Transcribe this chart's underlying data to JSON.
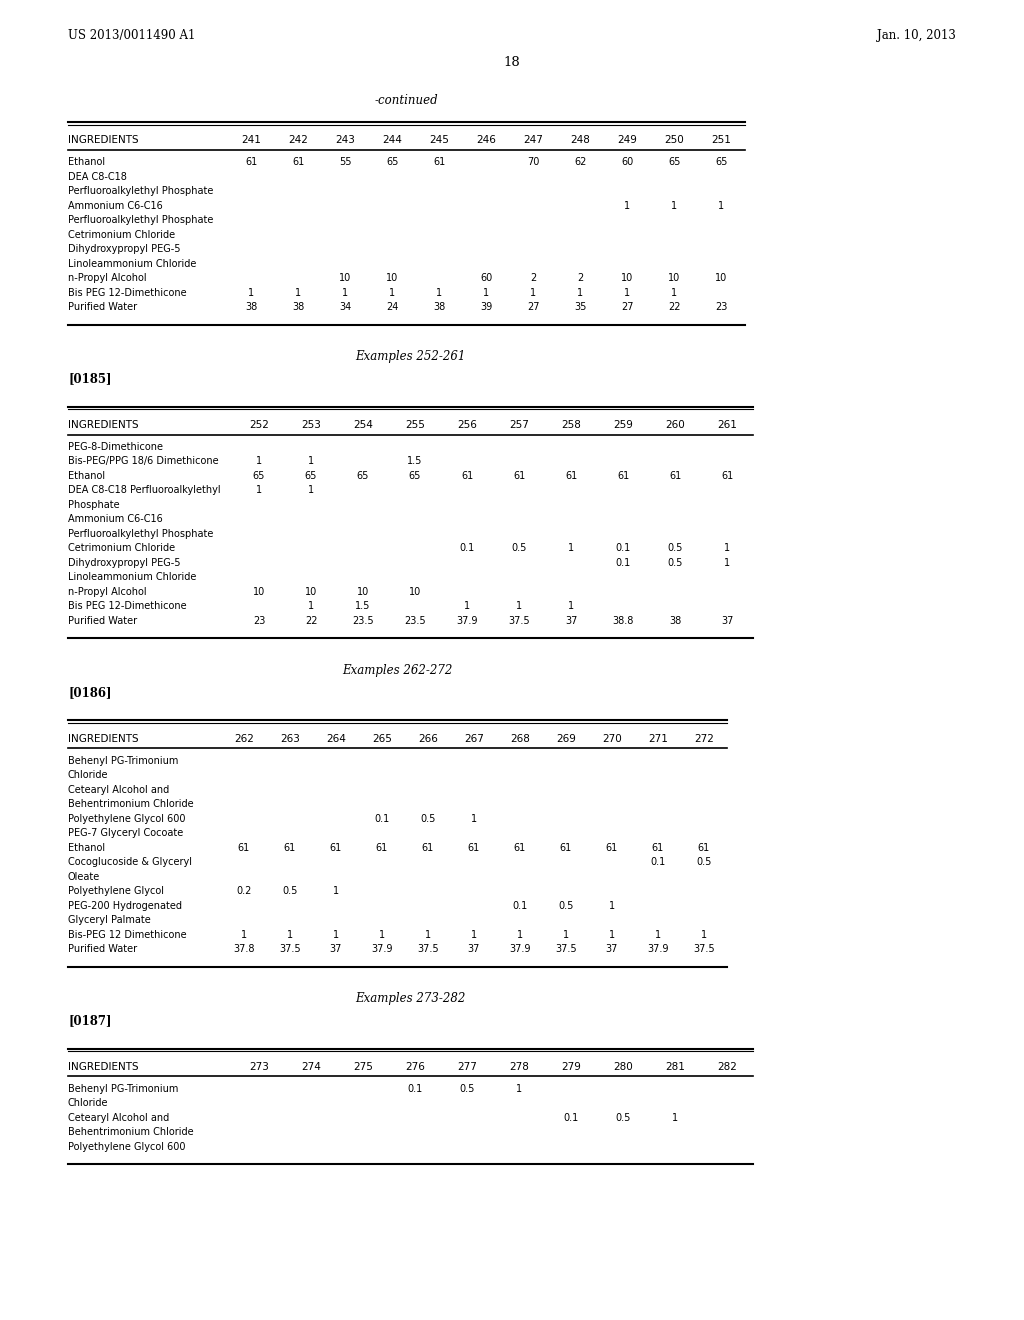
{
  "bg_color": "#ffffff",
  "page_number": "18",
  "patent_left": "US 2013/0011490 A1",
  "patent_right": "Jan. 10, 2013",
  "table1_title": "-continued",
  "table1_header": [
    "INGREDIENTS",
    "241",
    "242",
    "243",
    "244",
    "245",
    "246",
    "247",
    "248",
    "249",
    "250",
    "251"
  ],
  "table1_rows": [
    [
      "Ethanol",
      "61",
      "61",
      "55",
      "65",
      "61",
      "",
      "70",
      "62",
      "60",
      "65",
      "65"
    ],
    [
      "DEA C8-C18",
      "",
      "",
      "",
      "",
      "",
      "",
      "",
      "",
      "",
      "",
      ""
    ],
    [
      "Perfluoroalkylethyl Phosphate",
      "",
      "",
      "",
      "",
      "",
      "",
      "",
      "",
      "",
      "",
      ""
    ],
    [
      "Ammonium C6-C16",
      "",
      "",
      "",
      "",
      "",
      "",
      "",
      "",
      "1",
      "1",
      "1"
    ],
    [
      "Perfluoroalkylethyl Phosphate",
      "",
      "",
      "",
      "",
      "",
      "",
      "",
      "",
      "",
      "",
      ""
    ],
    [
      "Cetrimonium Chloride",
      "",
      "",
      "",
      "",
      "",
      "",
      "",
      "",
      "",
      "",
      ""
    ],
    [
      "Dihydroxypropyl PEG-5",
      "",
      "",
      "",
      "",
      "",
      "",
      "",
      "",
      "",
      "",
      ""
    ],
    [
      "Linoleammonium Chloride",
      "",
      "",
      "",
      "",
      "",
      "",
      "",
      "",
      "",
      "",
      ""
    ],
    [
      "n-Propyl Alcohol",
      "",
      "",
      "10",
      "10",
      "",
      "60",
      "2",
      "2",
      "10",
      "10",
      "10"
    ],
    [
      "Bis PEG 12-Dimethicone",
      "1",
      "1",
      "1",
      "1",
      "1",
      "1",
      "1",
      "1",
      "1",
      "1",
      ""
    ],
    [
      "Purified Water",
      "38",
      "38",
      "34",
      "24",
      "38",
      "39",
      "27",
      "35",
      "27",
      "22",
      "23"
    ]
  ],
  "table2_title": "Examples 252-261",
  "table2_label": "[0185]",
  "table2_header": [
    "INGREDIENTS",
    "252",
    "253",
    "254",
    "255",
    "256",
    "257",
    "258",
    "259",
    "260",
    "261"
  ],
  "table2_rows": [
    [
      "PEG-8-Dimethicone",
      "",
      "",
      "",
      "",
      "",
      "",
      "",
      "",
      "",
      ""
    ],
    [
      "Bis-PEG/PPG 18/6 Dimethicone",
      "1",
      "1",
      "",
      "1.5",
      "",
      "",
      "",
      "",
      "",
      ""
    ],
    [
      "Ethanol",
      "65",
      "65",
      "65",
      "65",
      "61",
      "61",
      "61",
      "61",
      "61",
      "61"
    ],
    [
      "DEA C8-C18 Perfluoroalkylethyl",
      "1",
      "1",
      "",
      "",
      "",
      "",
      "",
      "",
      "",
      ""
    ],
    [
      "Phosphate",
      "",
      "",
      "",
      "",
      "",
      "",
      "",
      "",
      "",
      ""
    ],
    [
      "Ammonium C6-C16",
      "",
      "",
      "",
      "",
      "",
      "",
      "",
      "",
      "",
      ""
    ],
    [
      "Perfluoroalkylethyl Phosphate",
      "",
      "",
      "",
      "",
      "",
      "",
      "",
      "",
      "",
      ""
    ],
    [
      "Cetrimonium Chloride",
      "",
      "",
      "",
      "",
      "0.1",
      "0.5",
      "1",
      "0.1",
      "0.5",
      "1"
    ],
    [
      "Dihydroxypropyl PEG-5",
      "",
      "",
      "",
      "",
      "",
      "",
      "",
      "0.1",
      "0.5",
      "1"
    ],
    [
      "Linoleammonium Chloride",
      "",
      "",
      "",
      "",
      "",
      "",
      "",
      "",
      "",
      ""
    ],
    [
      "n-Propyl Alcohol",
      "10",
      "10",
      "10",
      "10",
      "",
      "",
      "",
      "",
      "",
      ""
    ],
    [
      "Bis PEG 12-Dimethicone",
      "",
      "1",
      "1.5",
      "",
      "1",
      "1",
      "1",
      "",
      "",
      ""
    ],
    [
      "Purified Water",
      "23",
      "22",
      "23.5",
      "23.5",
      "37.9",
      "37.5",
      "37",
      "38.8",
      "38",
      "37"
    ]
  ],
  "table3_title": "Examples 262-272",
  "table3_label": "[0186]",
  "table3_header": [
    "INGREDIENTS",
    "262",
    "263",
    "264",
    "265",
    "266",
    "267",
    "268",
    "269",
    "270",
    "271",
    "272"
  ],
  "table3_rows": [
    [
      "Behenyl PG-Trimonium",
      "",
      "",
      "",
      "",
      "",
      "",
      "",
      "",
      "",
      "",
      ""
    ],
    [
      "Chloride",
      "",
      "",
      "",
      "",
      "",
      "",
      "",
      "",
      "",
      "",
      ""
    ],
    [
      "Cetearyl Alcohol and",
      "",
      "",
      "",
      "",
      "",
      "",
      "",
      "",
      "",
      "",
      ""
    ],
    [
      "Behentrimonium Chloride",
      "",
      "",
      "",
      "",
      "",
      "",
      "",
      "",
      "",
      "",
      ""
    ],
    [
      "Polyethylene Glycol 600",
      "",
      "",
      "",
      "0.1",
      "0.5",
      "1",
      "",
      "",
      "",
      "",
      ""
    ],
    [
      "PEG-7 Glyceryl Cocoate",
      "",
      "",
      "",
      "",
      "",
      "",
      "",
      "",
      "",
      "",
      ""
    ],
    [
      "Ethanol",
      "61",
      "61",
      "61",
      "61",
      "61",
      "61",
      "61",
      "61",
      "61",
      "61",
      "61"
    ],
    [
      "Cocoglucoside & Glyceryl",
      "",
      "",
      "",
      "",
      "",
      "",
      "",
      "",
      "",
      "0.1",
      "0.5"
    ],
    [
      "Oleate",
      "",
      "",
      "",
      "",
      "",
      "",
      "",
      "",
      "",
      "",
      ""
    ],
    [
      "Polyethylene Glycol",
      "0.2",
      "0.5",
      "1",
      "",
      "",
      "",
      "",
      "",
      "",
      "",
      ""
    ],
    [
      "PEG-200 Hydrogenated",
      "",
      "",
      "",
      "",
      "",
      "",
      "0.1",
      "0.5",
      "1",
      "",
      ""
    ],
    [
      "Glyceryl Palmate",
      "",
      "",
      "",
      "",
      "",
      "",
      "",
      "",
      "",
      "",
      ""
    ],
    [
      "Bis-PEG 12 Dimethicone",
      "1",
      "1",
      "1",
      "1",
      "1",
      "1",
      "1",
      "1",
      "1",
      "1",
      "1"
    ],
    [
      "Purified Water",
      "37.8",
      "37.5",
      "37",
      "37.9",
      "37.5",
      "37",
      "37.9",
      "37.5",
      "37",
      "37.9",
      "37.5"
    ]
  ],
  "table4_title": "Examples 273-282",
  "table4_label": "[0187]",
  "table4_header": [
    "INGREDIENTS",
    "273",
    "274",
    "275",
    "276",
    "277",
    "278",
    "279",
    "280",
    "281",
    "282"
  ],
  "table4_rows": [
    [
      "Behenyl PG-Trimonium",
      "",
      "",
      "",
      "0.1",
      "0.5",
      "1",
      "",
      "",
      "",
      ""
    ],
    [
      "Chloride",
      "",
      "",
      "",
      "",
      "",
      "",
      "",
      "",
      "",
      ""
    ],
    [
      "Cetearyl Alcohol and",
      "",
      "",
      "",
      "",
      "",
      "",
      "0.1",
      "0.5",
      "1",
      ""
    ],
    [
      "Behentrimonium Chloride",
      "",
      "",
      "",
      "",
      "",
      "",
      "",
      "",
      "",
      ""
    ],
    [
      "Polyethylene Glycol 600",
      "",
      "",
      "",
      "",
      "",
      "",
      "",
      "",
      "",
      ""
    ]
  ]
}
